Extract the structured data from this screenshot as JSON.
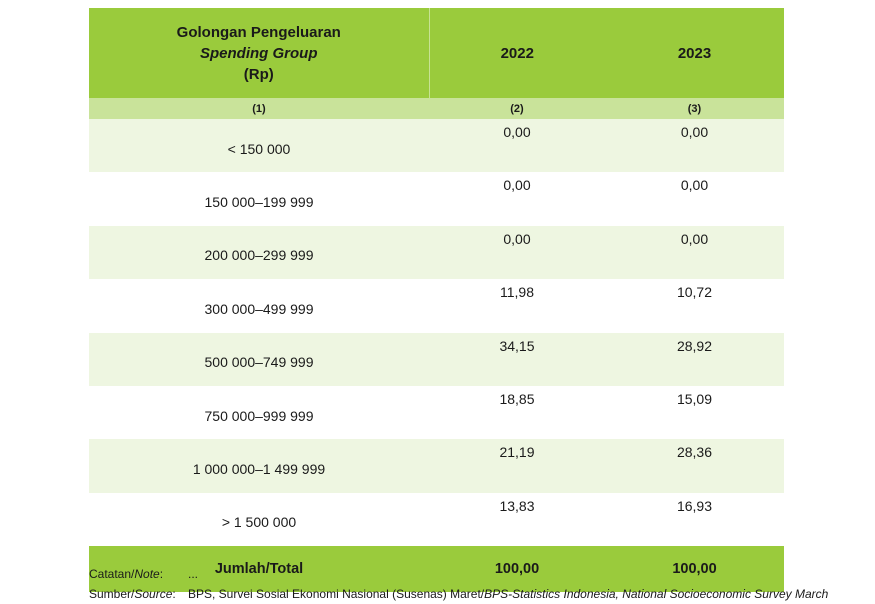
{
  "table": {
    "header": {
      "col1_line1": "Golongan Pengeluaran",
      "col1_line2": "Spending Group",
      "col1_line3": "(Rp)",
      "col2": "2022",
      "col3": "2023"
    },
    "column_numbers": [
      "(1)",
      "(2)",
      "(3)"
    ],
    "rows": [
      {
        "group": "< 150 000",
        "y2022": "0,00",
        "y2023": "0,00"
      },
      {
        "group": "150 000–199 999",
        "y2022": "0,00",
        "y2023": "0,00"
      },
      {
        "group": "200 000–299 999",
        "y2022": "0,00",
        "y2023": "0,00"
      },
      {
        "group": "300 000–499 999",
        "y2022": "11,98",
        "y2023": "10,72"
      },
      {
        "group": "500 000–749 999",
        "y2022": "34,15",
        "y2023": "28,92"
      },
      {
        "group": "750 000–999 999",
        "y2022": "18,85",
        "y2023": "15,09"
      },
      {
        "group": "1 000 000–1 499 999",
        "y2022": "21,19",
        "y2023": "28,36"
      },
      {
        "group": "> 1 500 000",
        "y2022": "13,83",
        "y2023": "16,93"
      }
    ],
    "total": {
      "label": "Jumlah/Total",
      "y2022": "100,00",
      "y2023": "100,00"
    }
  },
  "notes": {
    "note_label_a": "Catatan/",
    "note_label_b": "Note",
    "note_label_c": ":",
    "note_value": "...",
    "source_label_a": "Sumber/",
    "source_label_b": "Source",
    "source_label_c": ":",
    "source_value_a": "BPS, Survei Sosial Ekonomi Nasional (Susenas) Maret/",
    "source_value_b": "BPS-Statistics Indonesia, National Socioeconomic Survey March"
  }
}
